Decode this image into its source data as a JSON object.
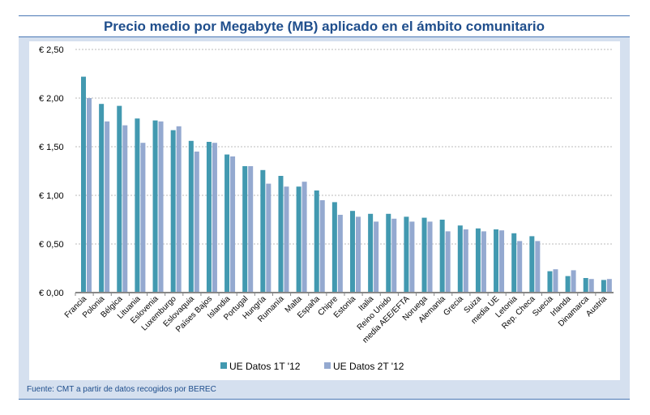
{
  "chart_data": {
    "type": "bar",
    "title": "Precio medio por Megabyte (MB) aplicado en el ámbito comunitario",
    "xlabel": "",
    "ylabel": "",
    "ylim": [
      0,
      2.5
    ],
    "yticks": [
      "€ 0,00",
      "€ 0,50",
      "€ 1,00",
      "€ 1,50",
      "€ 2,00",
      "€ 2,50"
    ],
    "ytick_values": [
      0,
      0.5,
      1,
      1.5,
      2,
      2.5
    ],
    "grid": true,
    "legend_position": "bottom",
    "categories": [
      "Francia",
      "Polonia",
      "Bélgica",
      "Lituania",
      "Eslovenia",
      "Luxemburgo",
      "Eslovaquia",
      "Países Bajos",
      "Islandia",
      "Portugal",
      "Hungría",
      "Rumanía",
      "Malta",
      "España",
      "Chipre",
      "Estonia",
      "Italia",
      "Reino Unido",
      "media AEE/EFTA",
      "Noruega",
      "Alemania",
      "Grecia",
      "Suiza",
      "media UE",
      "Letonia",
      "Rep. Checa",
      "Suecia",
      "Irlanda",
      "Dinamarca",
      "Austria"
    ],
    "series": [
      {
        "name": "UE Datos 1T '12",
        "color": "#4299b0",
        "values": [
          2.22,
          1.94,
          1.92,
          1.79,
          1.77,
          1.67,
          1.56,
          1.55,
          1.42,
          1.3,
          1.26,
          1.2,
          1.09,
          1.05,
          0.93,
          0.84,
          0.81,
          0.81,
          0.78,
          0.77,
          0.75,
          0.69,
          0.66,
          0.65,
          0.61,
          0.58,
          0.22,
          0.17,
          0.15,
          0.13
        ]
      },
      {
        "name": "UE Datos 2T '12",
        "color": "#94a9d0",
        "values": [
          2.0,
          1.76,
          1.72,
          1.54,
          1.76,
          1.71,
          1.45,
          1.54,
          1.4,
          1.3,
          1.12,
          1.09,
          1.14,
          0.95,
          0.8,
          0.78,
          0.73,
          0.76,
          0.73,
          0.73,
          0.63,
          0.65,
          0.63,
          0.64,
          0.53,
          0.53,
          0.24,
          0.23,
          0.14,
          0.14
        ]
      }
    ]
  },
  "source": "Fuente: CMT a partir de datos recogidos por BEREC"
}
